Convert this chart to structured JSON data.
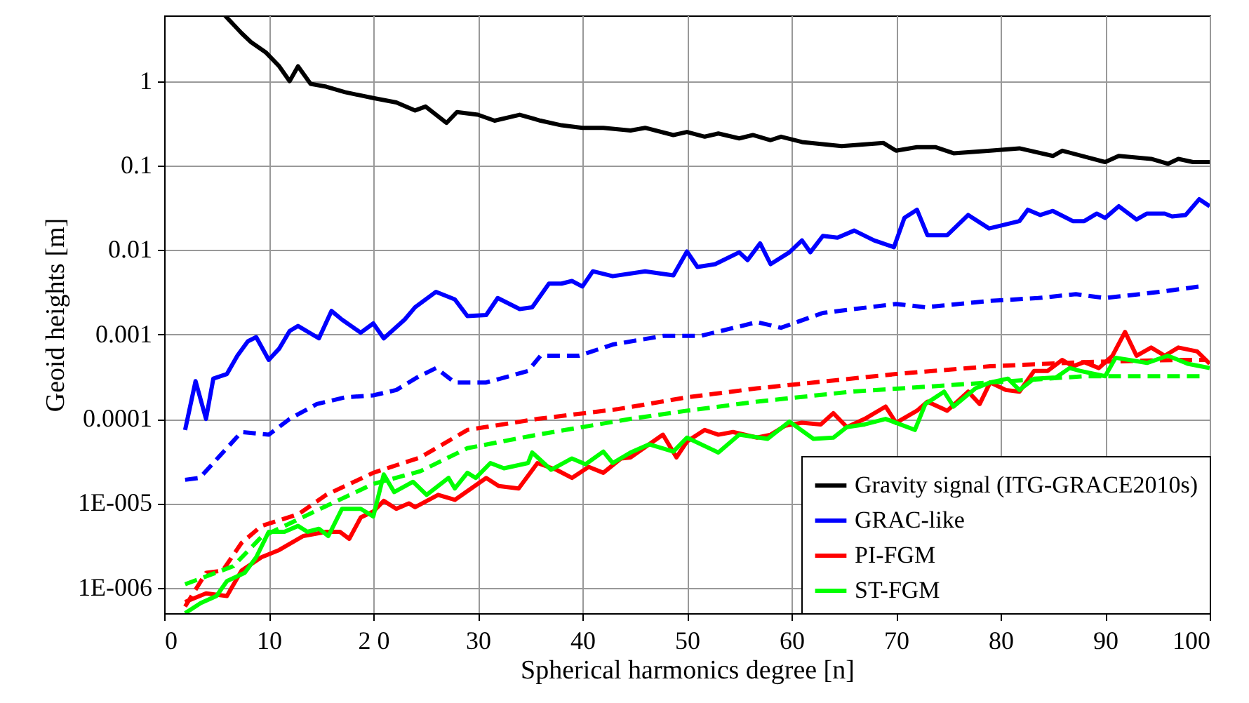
{
  "chart_data": {
    "type": "line",
    "xlabel": "Spherical harmonics degree [n]",
    "ylabel": "Geoid heights [m]",
    "xlim": [
      0,
      100
    ],
    "xticks": [
      0,
      10,
      {
        "value": 20,
        "label": "2 0"
      },
      30,
      40,
      50,
      60,
      70,
      80,
      90,
      100
    ],
    "ylim": [
      5e-07,
      6
    ],
    "yticks": [
      {
        "value": 1e-06,
        "label": "1E-006"
      },
      {
        "value": 1e-05,
        "label": "1E-005"
      },
      0.0001,
      0.001,
      0.01,
      0.1,
      1
    ],
    "log": "y",
    "grid": true,
    "legend": "bottom right",
    "marker": "none",
    "series": [
      {
        "name": "Gravity signal (ITG-GRACE2010s)",
        "color": "#000000",
        "line_style": "solid",
        "x": [
          5.8,
          7.4,
          8.3,
          9.7,
          11,
          12,
          12.8,
          14,
          15.5,
          17.3,
          20,
          22.2,
          24,
          25,
          27,
          28,
          30,
          31.6,
          34,
          36,
          38,
          40,
          42,
          44.6,
          46,
          48.7,
          50,
          51.7,
          53,
          55,
          56.3,
          58,
          59,
          61,
          64.8,
          68.8,
          70,
          72,
          73.8,
          75.5,
          79,
          81.8,
          85,
          85.9,
          90,
          91.3,
          94.4,
          96,
          97,
          98.4,
          100
        ],
        "values": [
          6,
          3.7,
          2.9,
          2.2,
          1.5,
          1.0,
          1.5,
          0.93,
          0.86,
          0.74,
          0.63,
          0.56,
          0.45,
          0.5,
          0.32,
          0.43,
          0.4,
          0.34,
          0.4,
          0.34,
          0.3,
          0.28,
          0.28,
          0.26,
          0.28,
          0.23,
          0.25,
          0.22,
          0.24,
          0.21,
          0.23,
          0.2,
          0.22,
          0.19,
          0.17,
          0.185,
          0.15,
          0.165,
          0.165,
          0.14,
          0.15,
          0.16,
          0.13,
          0.15,
          0.11,
          0.13,
          0.12,
          0.105,
          0.12,
          0.11,
          0.11
        ]
      },
      {
        "name": "GRAC-like",
        "color": "#0000ff",
        "line_style": "solid",
        "x": [
          2,
          3,
          4,
          4.7,
          6,
          7,
          8,
          8.8,
          10,
          11,
          12,
          12.8,
          14.8,
          16,
          17,
          18.8,
          20,
          21,
          23,
          24,
          26,
          27.8,
          29,
          30.8,
          31.9,
          34,
          35.2,
          36.8,
          38,
          39,
          40,
          41,
          42.9,
          46,
          48.7,
          50,
          51,
          52.7,
          55,
          55.8,
          57,
          58,
          59.8,
          61,
          61.8,
          63,
          64.4,
          66,
          67.9,
          69.8,
          70.8,
          72,
          73,
          74.9,
          76.9,
          78.9,
          81.8,
          82.6,
          83.8,
          85,
          86.9,
          88,
          89.2,
          90,
          91.3,
          93,
          94,
          95.7,
          96.4,
          97.7,
          99,
          100
        ],
        "values": [
          7.4e-05,
          0.00028,
          0.0001,
          0.0003,
          0.00034,
          0.00056,
          0.00083,
          0.00093,
          0.0005,
          0.00068,
          0.0011,
          0.00126,
          0.0009,
          0.0019,
          0.0015,
          0.00105,
          0.00135,
          0.0009,
          0.0015,
          0.0021,
          0.0032,
          0.0026,
          0.00165,
          0.0017,
          0.0027,
          0.002,
          0.0021,
          0.004,
          0.004,
          0.0043,
          0.0037,
          0.0056,
          0.0049,
          0.0056,
          0.005,
          0.0096,
          0.0063,
          0.0068,
          0.0094,
          0.0076,
          0.012,
          0.0068,
          0.0094,
          0.013,
          0.0094,
          0.0147,
          0.014,
          0.017,
          0.013,
          0.0108,
          0.024,
          0.03,
          0.015,
          0.015,
          0.026,
          0.018,
          0.022,
          0.03,
          0.026,
          0.029,
          0.022,
          0.022,
          0.027,
          0.024,
          0.033,
          0.023,
          0.027,
          0.027,
          0.025,
          0.026,
          0.04,
          0.033
        ]
      },
      {
        "color": "#0000ff",
        "line_style": "dashed",
        "x": [
          2,
          3.4,
          7.4,
          10,
          12,
          14.6,
          17.3,
          20,
          22.2,
          24.2,
          26,
          27.8,
          30.8,
          33,
          34.8,
          36,
          39.7,
          42.9,
          47.7,
          51.3,
          56.7,
          59,
          63,
          70,
          72.8,
          79,
          83.6,
          87.2,
          90,
          95.3,
          99
        ],
        "values": [
          1.9e-05,
          2e-05,
          7e-05,
          6.5e-05,
          0.0001,
          0.00015,
          0.00018,
          0.00019,
          0.00022,
          0.00031,
          0.0004,
          0.00027,
          0.00027,
          0.00032,
          0.00037,
          0.00056,
          0.00056,
          0.00076,
          0.00096,
          0.00096,
          0.0014,
          0.0012,
          0.0018,
          0.0023,
          0.0021,
          0.0025,
          0.0027,
          0.003,
          0.0027,
          0.0032,
          0.0037
        ]
      },
      {
        "name": "PI-FGM",
        "color": "#ff0000",
        "line_style": "solid",
        "x": [
          2,
          4,
          6,
          7.4,
          9.3,
          11,
          13.3,
          15.5,
          16.8,
          17.7,
          18.8,
          20,
          21,
          22.2,
          23.4,
          24,
          26.2,
          27.8,
          30.8,
          32,
          33.9,
          35.7,
          37.5,
          39,
          40.6,
          42,
          43.7,
          44.6,
          47.7,
          49,
          50,
          51.7,
          53,
          54.4,
          56.7,
          58,
          59.4,
          61,
          62.8,
          64,
          65.3,
          67,
          69,
          70,
          72,
          73,
          74.9,
          76.9,
          78,
          79,
          80.5,
          81.8,
          83.2,
          84.5,
          85.9,
          86.9,
          88,
          89.4,
          90.7,
          91.9,
          93,
          94.4,
          95.7,
          97,
          98.8,
          100
        ],
        "values": [
          6.8e-07,
          8.6e-07,
          8e-07,
          1.6e-06,
          2.3e-06,
          2.8e-06,
          4.1e-06,
          4.6e-06,
          4.6e-06,
          3.8e-06,
          6.8e-06,
          8e-06,
          1.07e-05,
          8.6e-06,
          1e-05,
          9e-06,
          1.26e-05,
          1.1e-05,
          2e-05,
          1.6e-05,
          1.5e-05,
          3e-05,
          2.5e-05,
          2e-05,
          2.7e-05,
          2.3e-05,
          3.4e-05,
          3.5e-05,
          6.5e-05,
          3.5e-05,
          5.4e-05,
          7.4e-05,
          6.5e-05,
          7e-05,
          6e-05,
          6.5e-05,
          8.3e-05,
          9e-05,
          8.6e-05,
          0.000117,
          8e-05,
          0.0001,
          0.00014,
          9e-05,
          0.000125,
          0.00016,
          0.000125,
          0.00021,
          0.00015,
          0.00027,
          0.00022,
          0.00021,
          0.00037,
          0.00037,
          0.0005,
          0.00042,
          0.00047,
          0.0004,
          0.00056,
          0.00107,
          0.00056,
          0.0007,
          0.00056,
          0.0007,
          0.00063,
          0.00045
        ]
      },
      {
        "color": "#ff0000",
        "line_style": "dashed",
        "x": [
          2,
          4,
          5.6,
          7.4,
          9.3,
          12.8,
          15.5,
          20,
          24.5,
          29,
          35.7,
          43.3,
          50,
          56.7,
          63.4,
          70,
          79,
          88,
          97,
          99.7
        ],
        "values": [
          6e-07,
          1.5e-06,
          1.6e-06,
          3.4e-06,
          5.4e-06,
          7.4e-06,
          1.26e-05,
          2.3e-05,
          3.5e-05,
          7.4e-05,
          0.0001,
          0.00013,
          0.00018,
          0.00023,
          0.00028,
          0.00034,
          0.00042,
          0.00047,
          0.0005,
          0.0005
        ]
      },
      {
        "name": "ST-FGM",
        "color": "#00ff00",
        "line_style": "solid",
        "x": [
          2,
          3.5,
          5,
          6,
          7.7,
          8.8,
          10,
          11.5,
          12.8,
          13.7,
          14.8,
          15.7,
          17,
          18.8,
          20,
          21,
          22,
          23.8,
          25.1,
          27.2,
          27.8,
          29,
          29.8,
          31.2,
          32.5,
          34.8,
          35.2,
          37,
          39,
          40.3,
          42,
          42.9,
          44.6,
          46.4,
          48.7,
          50,
          53,
          55,
          57.7,
          59.8,
          62.1,
          64,
          65.3,
          67,
          69,
          70,
          71.8,
          72.8,
          74.6,
          75.5,
          77.6,
          79,
          80.7,
          81.8,
          83.2,
          85.3,
          86.6,
          87.6,
          90,
          91,
          94,
          96,
          97.9,
          100
        ],
        "values": [
          5e-07,
          6.6e-07,
          8e-07,
          1.2e-06,
          1.5e-06,
          2.3e-06,
          4.6e-06,
          4.6e-06,
          5.4e-06,
          4.6e-06,
          5e-06,
          4.1e-06,
          8.6e-06,
          8.6e-06,
          7e-06,
          2.2e-05,
          1.36e-05,
          1.8e-05,
          1.26e-05,
          2e-05,
          1.5e-05,
          2.3e-05,
          2e-05,
          3e-05,
          2.6e-05,
          3e-05,
          4e-05,
          2.5e-05,
          3.4e-05,
          2.9e-05,
          4.1e-05,
          3e-05,
          4e-05,
          5e-05,
          4.1e-05,
          6e-05,
          4e-05,
          6.5e-05,
          5.8e-05,
          9.3e-05,
          5.8e-05,
          6e-05,
          8e-05,
          8.6e-05,
          0.0001,
          9e-05,
          7.4e-05,
          0.00015,
          0.00021,
          0.00014,
          0.00023,
          0.00027,
          0.0003,
          0.00022,
          0.0003,
          0.00031,
          0.0004,
          0.00037,
          0.00032,
          0.00053,
          0.00046,
          0.00056,
          0.00045,
          0.0004
        ]
      },
      {
        "color": "#00ff00",
        "line_style": "dashed",
        "x": [
          2,
          6.6,
          9.3,
          15.5,
          20,
          24.5,
          29,
          35.7,
          44.6,
          50,
          56.7,
          65.7,
          79,
          88,
          99.3
        ],
        "values": [
          1.1e-06,
          1.8e-06,
          4e-06,
          9.3e-06,
          1.7e-05,
          2.4e-05,
          4.5e-05,
          6.5e-05,
          0.0001,
          0.000125,
          0.00016,
          0.00021,
          0.00027,
          0.00032,
          0.00032
        ]
      }
    ]
  }
}
